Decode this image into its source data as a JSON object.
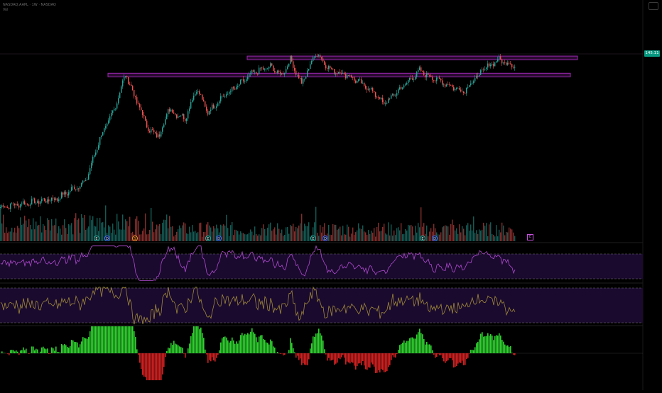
{
  "header": {
    "symbol_line": "NASDAQ:AAPL · 1W · NASDAQ",
    "sub_line": "Vol"
  },
  "last_price": "145.11",
  "colors": {
    "up": "#26a69a",
    "down": "#ef5350",
    "resistance": "#9c27b0",
    "band_fill": "#1a0a2e",
    "rsi_line": "#b04ad0",
    "stoch_line": "#a08a3a",
    "osc_up": "#2fd02f",
    "osc_down": "#d02020"
  },
  "markers": {
    "earnings_label": "E",
    "dividend_label": "D",
    "split_label": "S",
    "flag_label": "E"
  },
  "chart_data": [
    {
      "type": "candlestick",
      "title": "",
      "price_keypoints": [
        [
          0,
          42
        ],
        [
          40,
          48
        ],
        [
          60,
          60
        ],
        [
          70,
          90
        ],
        [
          80,
          110
        ],
        [
          88,
          135
        ],
        [
          95,
          118
        ],
        [
          105,
          95
        ],
        [
          112,
          92
        ],
        [
          118,
          110
        ],
        [
          130,
          104
        ],
        [
          138,
          125
        ],
        [
          146,
          108
        ],
        [
          155,
          118
        ],
        [
          165,
          125
        ],
        [
          178,
          136
        ],
        [
          190,
          140
        ],
        [
          198,
          134
        ],
        [
          204,
          145
        ],
        [
          212,
          128
        ],
        [
          222,
          150
        ],
        [
          232,
          138
        ],
        [
          245,
          134
        ],
        [
          262,
          123
        ],
        [
          270,
          114
        ],
        [
          285,
          128
        ],
        [
          295,
          137
        ],
        [
          305,
          132
        ],
        [
          318,
          126
        ],
        [
          326,
          123
        ],
        [
          340,
          138
        ],
        [
          350,
          145
        ],
        [
          362,
          141
        ]
      ],
      "resistance_levels": [
        134,
        146
      ],
      "volume_scale": "relative"
    },
    {
      "type": "line",
      "title": "",
      "bands": [
        30,
        70
      ],
      "series": [
        {
          "values": []
        }
      ]
    },
    {
      "type": "line",
      "title": "",
      "bands": [
        20,
        80
      ],
      "series": [
        {
          "values": []
        }
      ]
    },
    {
      "type": "bar",
      "title": "",
      "zero_line": true,
      "values": []
    }
  ]
}
